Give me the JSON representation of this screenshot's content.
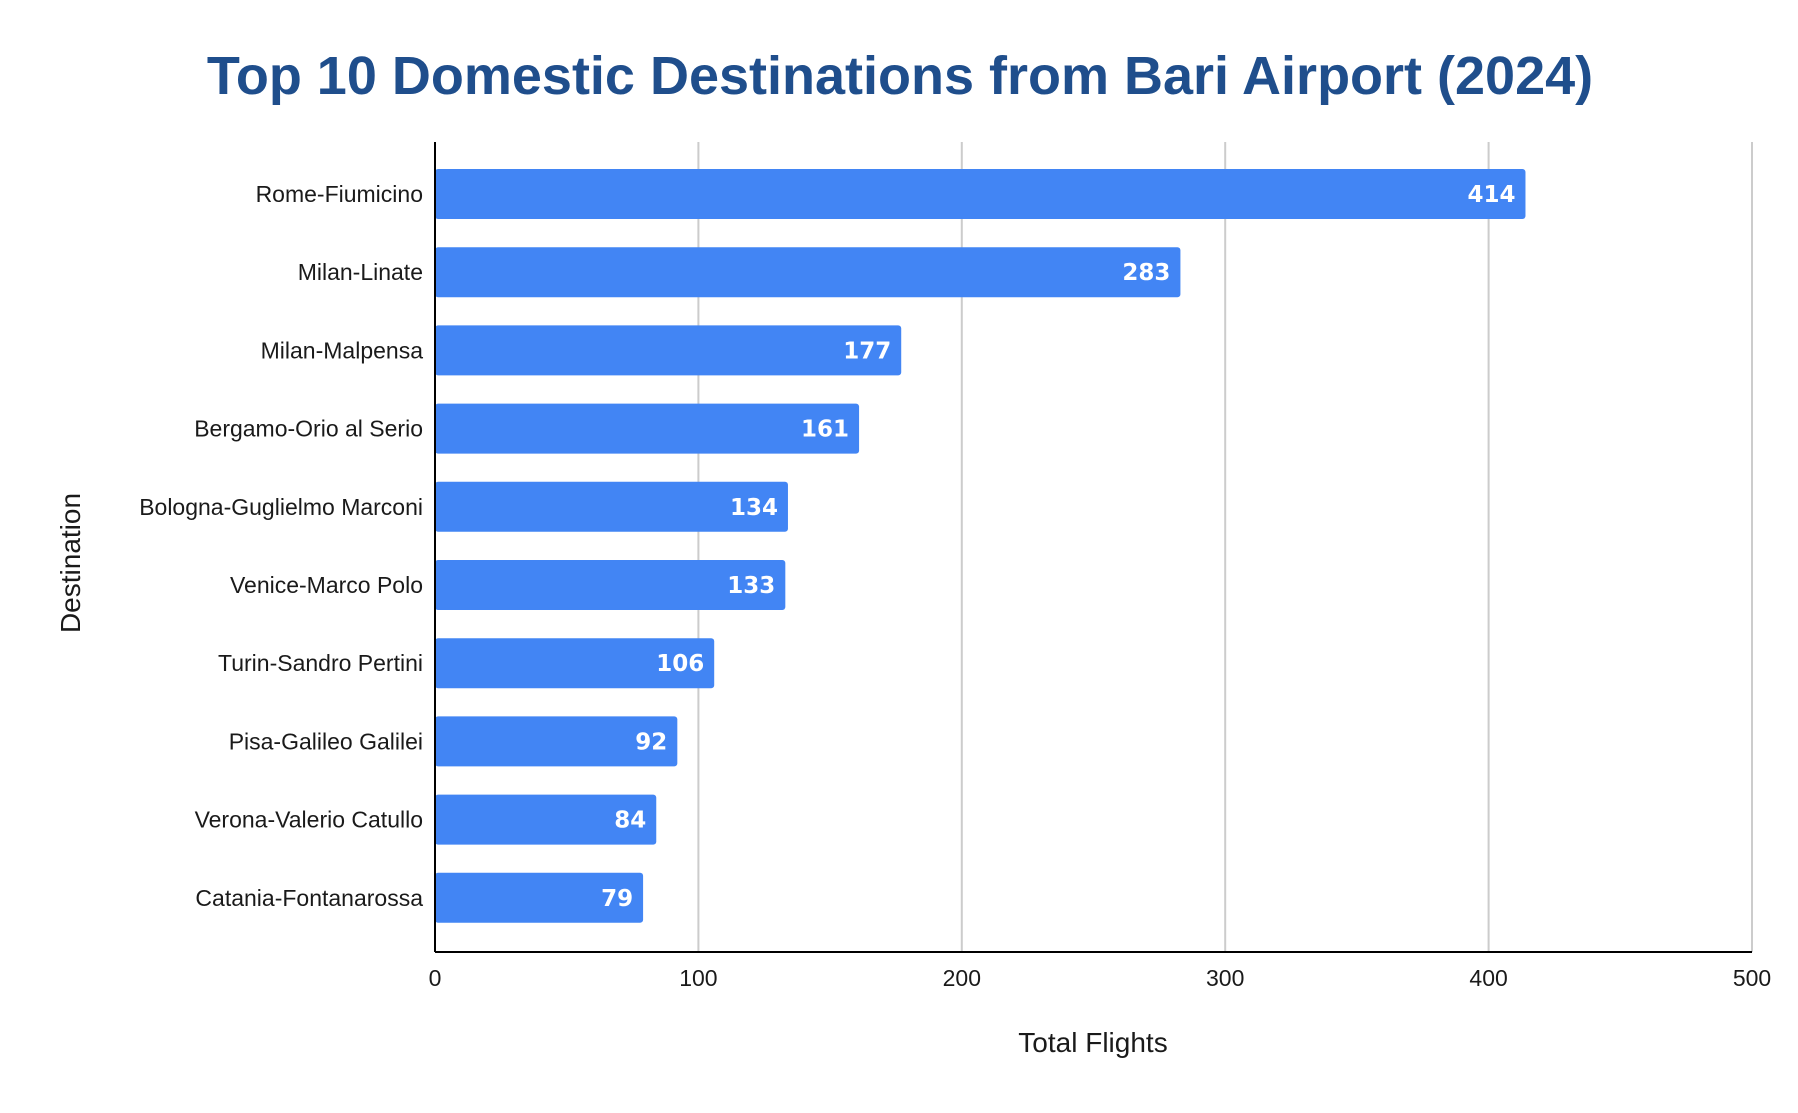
{
  "chart_data": {
    "type": "bar",
    "orientation": "horizontal",
    "title": "Top 10 Domestic Destinations from Bari Airport (2024)",
    "xlabel": "Total Flights",
    "ylabel": "Destination",
    "categories": [
      "Rome-Fiumicino",
      "Milan-Linate",
      "Milan-Malpensa",
      "Bergamo-Orio al Serio",
      "Bologna-Guglielmo Marconi",
      "Venice-Marco Polo",
      "Turin-Sandro Pertini",
      "Pisa-Galileo Galilei",
      "Verona-Valerio Catullo",
      "Catania-Fontanarossa"
    ],
    "values": [
      414,
      283,
      177,
      161,
      134,
      133,
      106,
      92,
      84,
      79
    ],
    "xlim": [
      0,
      500
    ],
    "xticks": [
      0,
      100,
      200,
      300,
      400,
      500
    ],
    "grid": "vertical",
    "data_labels": "inside-end"
  },
  "colors": {
    "bar": "#4285f4",
    "title": "#1f4e8c",
    "grid": "#cccccc",
    "axis": "#000000",
    "bar_label": "#ffffff"
  }
}
